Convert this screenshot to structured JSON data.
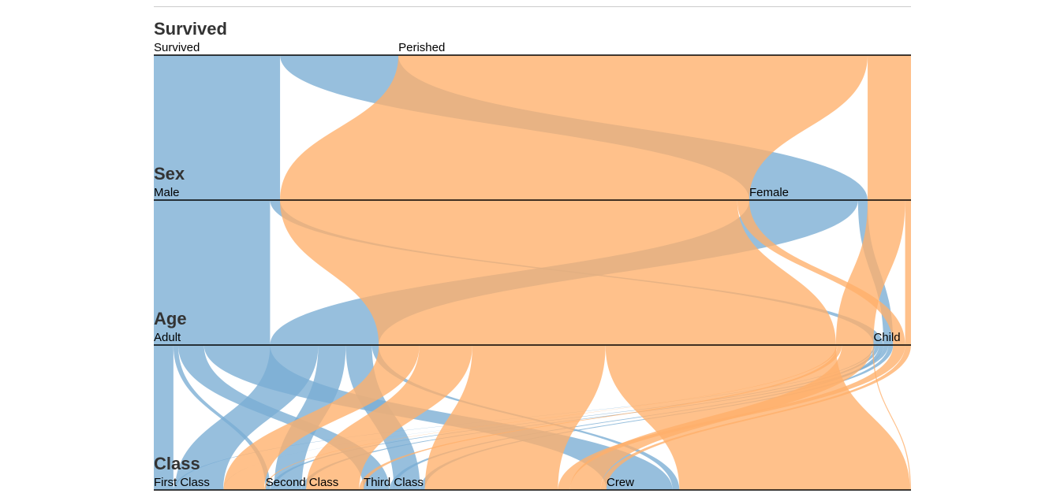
{
  "chart_data": {
    "type": "parallel-sets",
    "dimensions": [
      {
        "name": "Survived",
        "categories": [
          "Survived",
          "Perished"
        ]
      },
      {
        "name": "Sex",
        "categories": [
          "Male",
          "Female"
        ]
      },
      {
        "name": "Age",
        "categories": [
          "Adult",
          "Child"
        ]
      },
      {
        "name": "Class",
        "categories": [
          "First Class",
          "Second Class",
          "Third Class",
          "Crew"
        ]
      }
    ],
    "color_dimension": "Survived",
    "colors": {
      "Survived": "#7aadd4",
      "Perished": "#ffb06a"
    },
    "records": [
      {
        "Survived": "Survived",
        "Sex": "Male",
        "Age": "Adult",
        "Class": "First Class",
        "count": 57
      },
      {
        "Survived": "Survived",
        "Sex": "Male",
        "Age": "Adult",
        "Class": "Second Class",
        "count": 14
      },
      {
        "Survived": "Survived",
        "Sex": "Male",
        "Age": "Adult",
        "Class": "Third Class",
        "count": 75
      },
      {
        "Survived": "Survived",
        "Sex": "Male",
        "Age": "Adult",
        "Class": "Crew",
        "count": 192
      },
      {
        "Survived": "Survived",
        "Sex": "Male",
        "Age": "Child",
        "Class": "First Class",
        "count": 5
      },
      {
        "Survived": "Survived",
        "Sex": "Male",
        "Age": "Child",
        "Class": "Second Class",
        "count": 11
      },
      {
        "Survived": "Survived",
        "Sex": "Male",
        "Age": "Child",
        "Class": "Third Class",
        "count": 13
      },
      {
        "Survived": "Survived",
        "Sex": "Female",
        "Age": "Adult",
        "Class": "First Class",
        "count": 140
      },
      {
        "Survived": "Survived",
        "Sex": "Female",
        "Age": "Adult",
        "Class": "Second Class",
        "count": 80
      },
      {
        "Survived": "Survived",
        "Sex": "Female",
        "Age": "Adult",
        "Class": "Third Class",
        "count": 76
      },
      {
        "Survived": "Survived",
        "Sex": "Female",
        "Age": "Adult",
        "Class": "Crew",
        "count": 20
      },
      {
        "Survived": "Survived",
        "Sex": "Female",
        "Age": "Child",
        "Class": "First Class",
        "count": 1
      },
      {
        "Survived": "Survived",
        "Sex": "Female",
        "Age": "Child",
        "Class": "Second Class",
        "count": 13
      },
      {
        "Survived": "Survived",
        "Sex": "Female",
        "Age": "Child",
        "Class": "Third Class",
        "count": 14
      },
      {
        "Survived": "Perished",
        "Sex": "Male",
        "Age": "Adult",
        "Class": "First Class",
        "count": 118
      },
      {
        "Survived": "Perished",
        "Sex": "Male",
        "Age": "Adult",
        "Class": "Second Class",
        "count": 154
      },
      {
        "Survived": "Perished",
        "Sex": "Male",
        "Age": "Adult",
        "Class": "Third Class",
        "count": 387
      },
      {
        "Survived": "Perished",
        "Sex": "Male",
        "Age": "Adult",
        "Class": "Crew",
        "count": 670
      },
      {
        "Survived": "Perished",
        "Sex": "Male",
        "Age": "Child",
        "Class": "Third Class",
        "count": 35
      },
      {
        "Survived": "Perished",
        "Sex": "Female",
        "Age": "Adult",
        "Class": "First Class",
        "count": 4
      },
      {
        "Survived": "Perished",
        "Sex": "Female",
        "Age": "Adult",
        "Class": "Second Class",
        "count": 13
      },
      {
        "Survived": "Perished",
        "Sex": "Female",
        "Age": "Adult",
        "Class": "Third Class",
        "count": 89
      },
      {
        "Survived": "Perished",
        "Sex": "Female",
        "Age": "Adult",
        "Class": "Crew",
        "count": 3
      },
      {
        "Survived": "Perished",
        "Sex": "Female",
        "Age": "Child",
        "Class": "Third Class",
        "count": 17
      }
    ]
  }
}
